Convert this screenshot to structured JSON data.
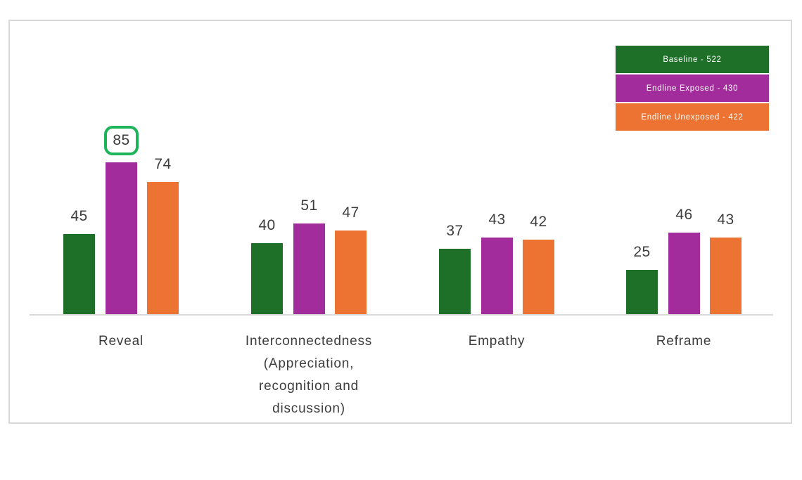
{
  "chart_data": {
    "type": "bar",
    "title": "",
    "xlabel": "",
    "ylabel": "",
    "categories": [
      "Reveal",
      "Interconnectedness\n(Appreciation,\nrecognition and\ndiscussion)",
      "Empathy",
      "Reframe"
    ],
    "series": [
      {
        "name": "Baseline - 522",
        "color": "#1E7029",
        "values": [
          45,
          40,
          37,
          25
        ]
      },
      {
        "name": "Endline Exposed - 430",
        "color": "#A32C9C",
        "values": [
          85,
          51,
          43,
          46
        ]
      },
      {
        "name": "Endline Unexposed - 422",
        "color": "#EC7331",
        "values": [
          74,
          47,
          42,
          43
        ]
      }
    ],
    "ylim": [
      0,
      85
    ],
    "grid": false,
    "value_labels": true,
    "legend_position": "top-right",
    "highlight": {
      "category_index": 0,
      "series_index": 1,
      "value": 85,
      "shape": "rounded-rect-outline",
      "color": "#1DB45A"
    }
  },
  "legend": {
    "items": [
      {
        "label": "Baseline - 522",
        "color": "#1E7029"
      },
      {
        "label": "Endline Exposed - 430",
        "color": "#A32C9C"
      },
      {
        "label": "Endline Unexposed - 422",
        "color": "#EC7331"
      }
    ],
    "text_color": "#FFFFFF"
  },
  "colors": {
    "background": "#FFFFFF",
    "frame_border": "#D9D9D9",
    "axis_line": "#D9D9D9",
    "label_text": "#3D3D3D"
  }
}
